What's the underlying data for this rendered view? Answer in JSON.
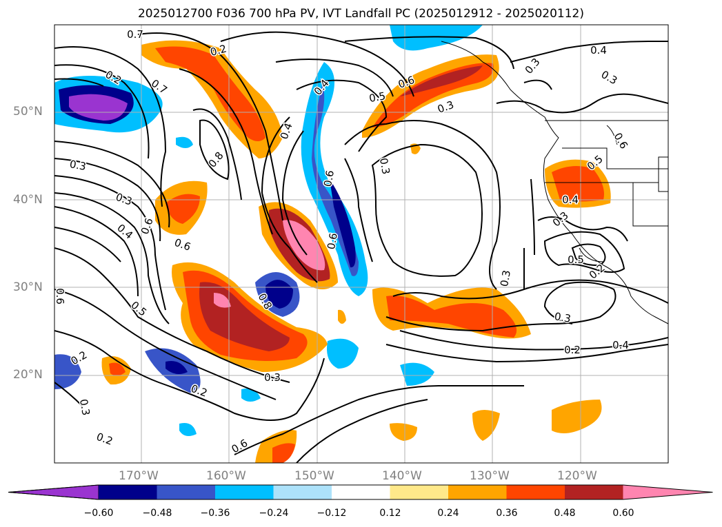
{
  "title": "2025012700 F036 700 hPa PV, IVT Landfall PC (2025012912 - 2025020112)",
  "map": {
    "lon_labels": [
      "170°W",
      "160°W",
      "150°W",
      "140°W",
      "130°W",
      "120°W"
    ],
    "lat_labels": [
      "50°N",
      "40°N",
      "30°N",
      "20°N"
    ],
    "contour_labels": [
      "0.7",
      "0.2",
      "0.4",
      "0.7",
      "0.6",
      "0.3",
      "0.4",
      "0.3",
      "0.3",
      "0.6",
      "0.5",
      "0.3",
      "0.4",
      "0.2",
      "0.3",
      "0.8",
      "0.3",
      "0.4",
      "0.6",
      "0.6",
      "0.8",
      "0.5",
      "0.6",
      "0.6",
      "0.5",
      "0.4",
      "0.3",
      "0.5",
      "0.2",
      "0.2",
      "0.2",
      "0.3",
      "0.2",
      "0.3",
      "0.6",
      "0.3",
      "0.2",
      "0.4",
      "0.3",
      "0.6"
    ]
  },
  "colorbar": {
    "ticks": [
      "−0.60",
      "−0.48",
      "−0.36",
      "−0.24",
      "−0.12",
      "0.12",
      "0.24",
      "0.36",
      "0.48",
      "0.60"
    ],
    "colors": [
      "#9a34d0",
      "#00008b",
      "#3855c8",
      "#00bfff",
      "#ade2fa",
      "#ffffff",
      "#ffe98a",
      "#ffa500",
      "#ff4500",
      "#b22222",
      "#ff85b0"
    ]
  }
}
